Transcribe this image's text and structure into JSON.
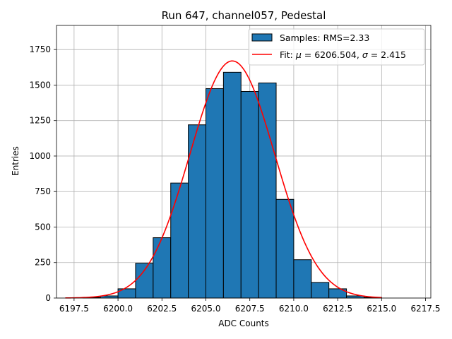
{
  "chart_data": {
    "type": "bar",
    "title": "Run 647, channel057, Pedestal",
    "xlabel": "ADC Counts",
    "ylabel": "Entries",
    "xlim": [
      6196.5,
      6217.8
    ],
    "ylim": [
      0,
      1920
    ],
    "xticks": [
      6197.5,
      6200.0,
      6202.5,
      6205.0,
      6207.5,
      6210.0,
      6212.5,
      6215.0,
      6217.5
    ],
    "xtick_labels": [
      "6197.5",
      "6200.0",
      "6202.5",
      "6205.0",
      "6207.5",
      "6210.0",
      "6212.5",
      "6215.0",
      "6217.5"
    ],
    "yticks": [
      0,
      250,
      500,
      750,
      1000,
      1250,
      1500,
      1750
    ],
    "ytick_labels": [
      "0",
      "250",
      "500",
      "750",
      "1000",
      "1250",
      "1500",
      "1750"
    ],
    "grid": true,
    "legend_position": "top-right",
    "bar_color": "#1f77b4",
    "fit_color": "#ff0000",
    "series": [
      {
        "name": "Samples: RMS=2.33",
        "type": "histogram",
        "bin_edges": [
          6197,
          6198,
          6199,
          6200,
          6201,
          6202,
          6203,
          6204,
          6205,
          6206,
          6207,
          6208,
          6209,
          6210,
          6211,
          6212,
          6213,
          6214,
          6215,
          6216,
          6217
        ],
        "counts": [
          0,
          5,
          15,
          65,
          245,
          425,
          810,
          1220,
          1475,
          1590,
          1455,
          1515,
          695,
          270,
          110,
          65,
          15,
          5,
          0,
          0
        ]
      },
      {
        "name": "Fit: $\\mu$ = 6206.504, $\\sigma$ = 2.415",
        "type": "line",
        "gaussian": {
          "mu": 6206.504,
          "sigma": 2.415,
          "amplitude": 1670,
          "x_range": [
            6197,
            6215
          ]
        }
      }
    ],
    "legend": [
      {
        "label_prefix": "Samples: RMS=2.33"
      },
      {
        "label_prefix": "Fit: ",
        "mu_sym": "μ",
        "mu_text": " = 6206.504, ",
        "sigma_sym": "σ",
        "sigma_text": " = 2.415"
      }
    ]
  }
}
